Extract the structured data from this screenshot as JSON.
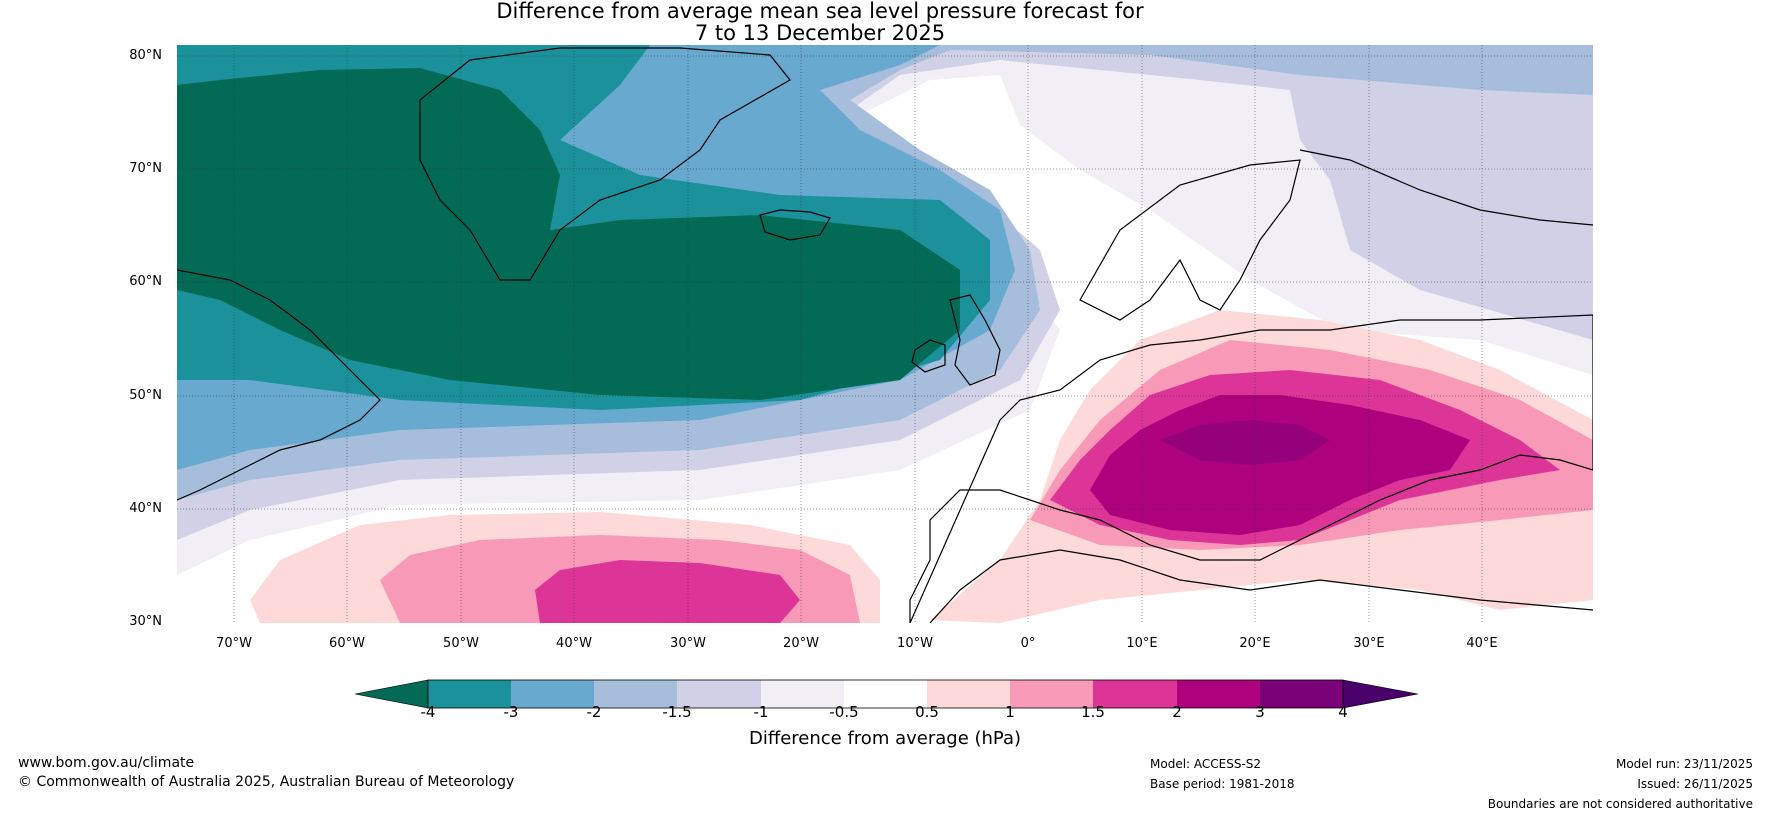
{
  "title": {
    "line1": "Difference from average mean sea level pressure forecast for",
    "line2": "7 to 13 December 2025"
  },
  "map": {
    "lat_labels": [
      "80°N",
      "70°N",
      "60°N",
      "50°N",
      "40°N",
      "30°N"
    ],
    "lon_labels": [
      "70°W",
      "60°W",
      "50°W",
      "40°W",
      "30°W",
      "20°W",
      "10°W",
      "0°",
      "10°E",
      "20°E",
      "30°E",
      "40°E"
    ]
  },
  "colorbar": {
    "title": "Difference from average (hPa)",
    "ticks": [
      "-4",
      "-3",
      "-2",
      "-1.5",
      "-1",
      "-0.5",
      "0.5",
      "1",
      "1.5",
      "2",
      "3",
      "4"
    ],
    "colors": [
      "#036b55",
      "#1b929b",
      "#67a9cf",
      "#a6bddb",
      "#d0d1e6",
      "#f1eef6",
      "#ffffff",
      "#fdd9da",
      "#f89ab7",
      "#dd3497",
      "#ae017e",
      "#7a0177",
      "#49006a"
    ]
  },
  "footer": {
    "website": "www.bom.gov.au/climate",
    "copyright": "© Commonwealth of Australia 2025, Australian Bureau of Meteorology",
    "model": "Model: ACCESS-S2",
    "base_period": "Base period: 1981-2018",
    "model_run": "Model run: 23/11/2025",
    "issued": "Issued: 26/11/2025",
    "disclaimer": "Boundaries are not considered authoritative"
  }
}
